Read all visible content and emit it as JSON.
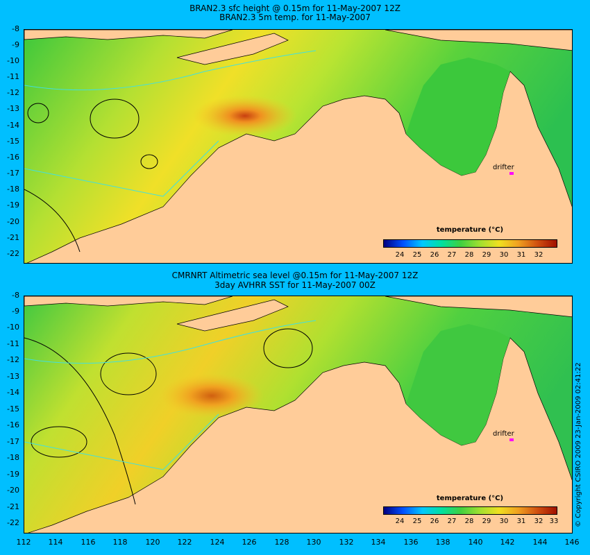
{
  "panel1": {
    "title_line1": "BRAN2.3 sfc height @ 0.15m for 11-May-2007 12Z",
    "title_line2": "BRAN2.3 5m temp. for 11-May-2007",
    "colorbar": {
      "title": "temperature (°C)",
      "labels": [
        "24",
        "25",
        "26",
        "27",
        "28",
        "29",
        "30",
        "31",
        "32"
      ]
    },
    "drifter_label": "drifter"
  },
  "panel2": {
    "title_line1": "CMRNRT Altimetric sea level  @0.15m  for 11-May-2007 12Z",
    "title_line2": "3day AVHRR SST for 11-May-2007 00Z",
    "colorbar": {
      "title": "temperature (°C)",
      "labels": [
        "24",
        "25",
        "26",
        "27",
        "28",
        "29",
        "30",
        "31",
        "32",
        "33"
      ]
    },
    "drifter_label": "drifter"
  },
  "y_axis_labels": [
    "-8",
    "-9",
    "-10",
    "-11",
    "-12",
    "-13",
    "-14",
    "-15",
    "-16",
    "-17",
    "-18",
    "-19",
    "-20",
    "-21",
    "-22"
  ],
  "x_axis_labels": [
    "112",
    "114",
    "116",
    "118",
    "120",
    "122",
    "124",
    "126",
    "128",
    "130",
    "132",
    "134",
    "136",
    "138",
    "140",
    "142",
    "144",
    "146"
  ],
  "copyright": "© Copyright CSIRO 2009   23-Jan-2009 02:41:22",
  "colors": {
    "background": "#00bfff",
    "land": "#ffcc99",
    "drifter": "#ff00ff",
    "contour_sst": "#40e0e0",
    "contour_ssh": "#000000"
  }
}
